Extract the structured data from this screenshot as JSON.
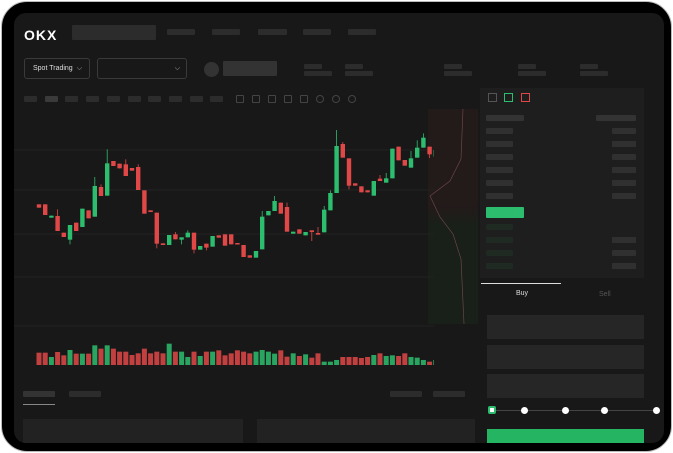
{
  "header": {
    "logo": "OKX"
  },
  "toolbar": {
    "market_select": "Spot Trading"
  },
  "trade": {
    "buy_tab": "Buy",
    "sell_tab": "Sell",
    "leverage_slider_value": 0
  },
  "colors": {
    "up": "#2dbd6e",
    "down": "#e04848",
    "background": "#181818"
  },
  "chart_data": {
    "type": "candlestick",
    "candles": [
      [
        150,
        150,
        140,
        140
      ],
      [
        150,
        150,
        118,
        118
      ],
      [
        110,
        116,
        110,
        116
      ],
      [
        115,
        135,
        70,
        70
      ],
      [
        65,
        65,
        52,
        52
      ],
      [
        44,
        88,
        30,
        88
      ],
      [
        95,
        95,
        70,
        70
      ],
      [
        82,
        137,
        82,
        137
      ],
      [
        132,
        132,
        108,
        108
      ],
      [
        113,
        232,
        113,
        205
      ],
      [
        202,
        210,
        175,
        175
      ],
      [
        176,
        315,
        176,
        273
      ],
      [
        280,
        280,
        265,
        265
      ],
      [
        272,
        272,
        258,
        258
      ],
      [
        270,
        285,
        235,
        235
      ],
      [
        259,
        259,
        251,
        251
      ],
      [
        262,
        270,
        193,
        193
      ],
      [
        192,
        192,
        122,
        122
      ],
      [
        132,
        132,
        127,
        127
      ],
      [
        125,
        125,
        18,
        32
      ],
      [
        33,
        33,
        28,
        28
      ],
      [
        28,
        58,
        28,
        58
      ],
      [
        60,
        67,
        45,
        45
      ],
      [
        44,
        51,
        30,
        51
      ],
      [
        51,
        72,
        51,
        65
      ],
      [
        65,
        65,
        3,
        14
      ],
      [
        14,
        25,
        14,
        25
      ],
      [
        32,
        32,
        12,
        20
      ],
      [
        23,
        55,
        23,
        55
      ],
      [
        57,
        57,
        50,
        50
      ],
      [
        60,
        60,
        26,
        26
      ],
      [
        60,
        60,
        30,
        30
      ],
      [
        34,
        34,
        30,
        30
      ],
      [
        28,
        28,
        -8,
        -8
      ],
      [
        -3,
        -3,
        -10,
        -10
      ],
      [
        -10,
        10,
        -10,
        10
      ],
      [
        15,
        130,
        15,
        113
      ],
      [
        117,
        130,
        117,
        130
      ],
      [
        130,
        175,
        130,
        160
      ],
      [
        155,
        155,
        122,
        122
      ],
      [
        142,
        155,
        68,
        68
      ],
      [
        62,
        68,
        62,
        68
      ],
      [
        75,
        75,
        62,
        62
      ],
      [
        57,
        67,
        57,
        67
      ],
      [
        72,
        72,
        40,
        67
      ],
      [
        64,
        82,
        59,
        59
      ],
      [
        66,
        145,
        66,
        134
      ],
      [
        132,
        192,
        132,
        184
      ],
      [
        184,
        373,
        184,
        325
      ],
      [
        331,
        337,
        290,
        290
      ],
      [
        288,
        288,
        195,
        206
      ],
      [
        213,
        213,
        206,
        206
      ],
      [
        204,
        204,
        186,
        186
      ],
      [
        192,
        192,
        186,
        186
      ],
      [
        176,
        220,
        176,
        220
      ],
      [
        227,
        238,
        220,
        220
      ],
      [
        215,
        244,
        215,
        228
      ],
      [
        228,
        317,
        228,
        317
      ],
      [
        323,
        323,
        282,
        282
      ],
      [
        283,
        283,
        266,
        266
      ],
      [
        260,
        310,
        260,
        288
      ],
      [
        290,
        342,
        290,
        320
      ],
      [
        320,
        363,
        320,
        350
      ],
      [
        323,
        323,
        289,
        300
      ],
      [
        293,
        333,
        293,
        313
      ]
    ],
    "candle_fields": [
      "open",
      "high",
      "low",
      "close"
    ],
    "volume": [
      37,
      37,
      24,
      39,
      29,
      45,
      34,
      34,
      34,
      59,
      49,
      59,
      49,
      40,
      40,
      30,
      35,
      49,
      35,
      40,
      35,
      64,
      40,
      40,
      24,
      40,
      27,
      40,
      40,
      44,
      29,
      35,
      44,
      40,
      35,
      40,
      45,
      40,
      34,
      44,
      25,
      35,
      27,
      32,
      22,
      35,
      10,
      10,
      15,
      24,
      24,
      24,
      21,
      24,
      30,
      35,
      27,
      29,
      27,
      35,
      24,
      22,
      15,
      10,
      15
    ]
  }
}
